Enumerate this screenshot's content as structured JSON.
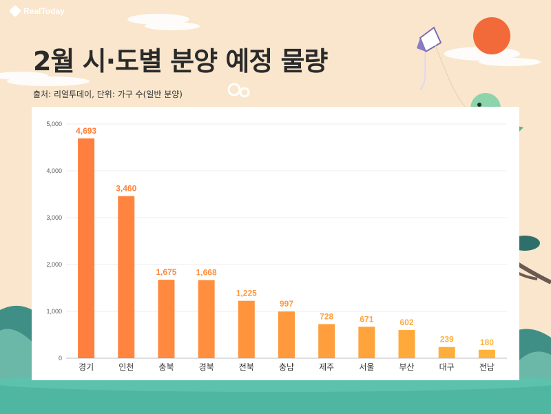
{
  "brand": {
    "name": "RealToday"
  },
  "header": {
    "title": "2월 시·도별 분양 예정 물량",
    "source": "출처: 리얼투데이, 단위: 가구 수(일반 분양)"
  },
  "colors": {
    "background": "#f9e6cc",
    "bar_start": "#ff7f3f",
    "bar_end": "#ffb33a",
    "ground": "#4fb6a2",
    "sun": "#f26a3a"
  },
  "decorations": [
    "sun",
    "kite",
    "dragon-icon",
    "pine-tree",
    "mountains",
    "clouds"
  ],
  "chart_data": {
    "type": "bar",
    "categories": [
      "경기",
      "인천",
      "충북",
      "경북",
      "전북",
      "충남",
      "제주",
      "서울",
      "부산",
      "대구",
      "전남"
    ],
    "values": [
      4693,
      3460,
      1675,
      1668,
      1225,
      997,
      728,
      671,
      602,
      239,
      180
    ],
    "value_labels": [
      "4,693",
      "3,460",
      "1,675",
      "1,668",
      "1,225",
      "997",
      "728",
      "671",
      "602",
      "239",
      "180"
    ],
    "yticks": [
      "0",
      "1,000",
      "2,000",
      "3,000",
      "4,000",
      "5,000"
    ],
    "ylim": [
      0,
      5000
    ],
    "grid": true
  }
}
